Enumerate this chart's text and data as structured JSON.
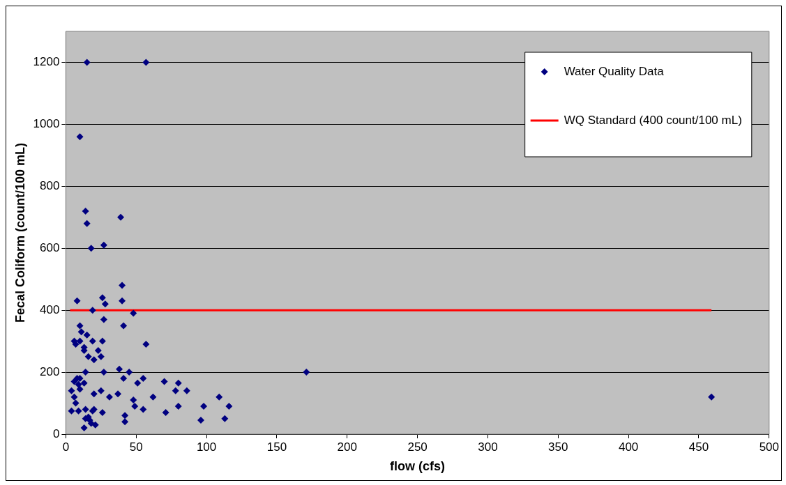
{
  "chart_data": {
    "type": "scatter",
    "xlabel": "flow (cfs)",
    "ylabel": "Fecal Coliform (count/100 mL)",
    "xlim": [
      0,
      500
    ],
    "xticks": [
      0,
      50,
      100,
      150,
      200,
      250,
      300,
      350,
      400,
      450,
      500
    ],
    "ylim": [
      0,
      1300
    ],
    "yticks": [
      0,
      200,
      400,
      600,
      800,
      1000,
      1200
    ],
    "grid": "y",
    "legend": "top right",
    "marker": "diamond",
    "series": [
      {
        "name": "Water Quality Data",
        "color": "#000080",
        "x": [
          15,
          57,
          10,
          14,
          15,
          18,
          27,
          39,
          40,
          8,
          26,
          28,
          40,
          19,
          48,
          27,
          41,
          10,
          11,
          15,
          6,
          10,
          19,
          26,
          7,
          13,
          57,
          23,
          13,
          16,
          25,
          20,
          14,
          27,
          38,
          45,
          8,
          10,
          41,
          55,
          6,
          13,
          9,
          51,
          70,
          10,
          4,
          25,
          20,
          37,
          6,
          31,
          48,
          62,
          7,
          49,
          4,
          9,
          14,
          20,
          26,
          55,
          71,
          19,
          14,
          16,
          18,
          21,
          13,
          42,
          42,
          17,
          80,
          78,
          86,
          109,
          80,
          98,
          116,
          96,
          113,
          171,
          459
        ],
        "values": [
          1200,
          1200,
          960,
          720,
          680,
          600,
          610,
          700,
          480,
          430,
          440,
          420,
          430,
          400,
          390,
          370,
          350,
          350,
          330,
          320,
          300,
          300,
          300,
          300,
          290,
          280,
          290,
          270,
          270,
          250,
          250,
          240,
          200,
          200,
          210,
          200,
          180,
          180,
          180,
          180,
          170,
          165,
          160,
          165,
          170,
          145,
          140,
          140,
          130,
          130,
          120,
          120,
          110,
          120,
          100,
          90,
          75,
          75,
          80,
          80,
          70,
          80,
          70,
          75,
          50,
          55,
          35,
          30,
          20,
          60,
          40,
          45,
          165,
          140,
          140,
          120,
          90,
          90,
          90,
          45,
          50,
          200,
          120
        ]
      },
      {
        "name": "WQ Standard (400 count/100 mL)",
        "type": "line",
        "color": "#ff0000",
        "marker": "none",
        "x": [
          3,
          459
        ],
        "values": [
          400,
          400
        ]
      }
    ]
  }
}
